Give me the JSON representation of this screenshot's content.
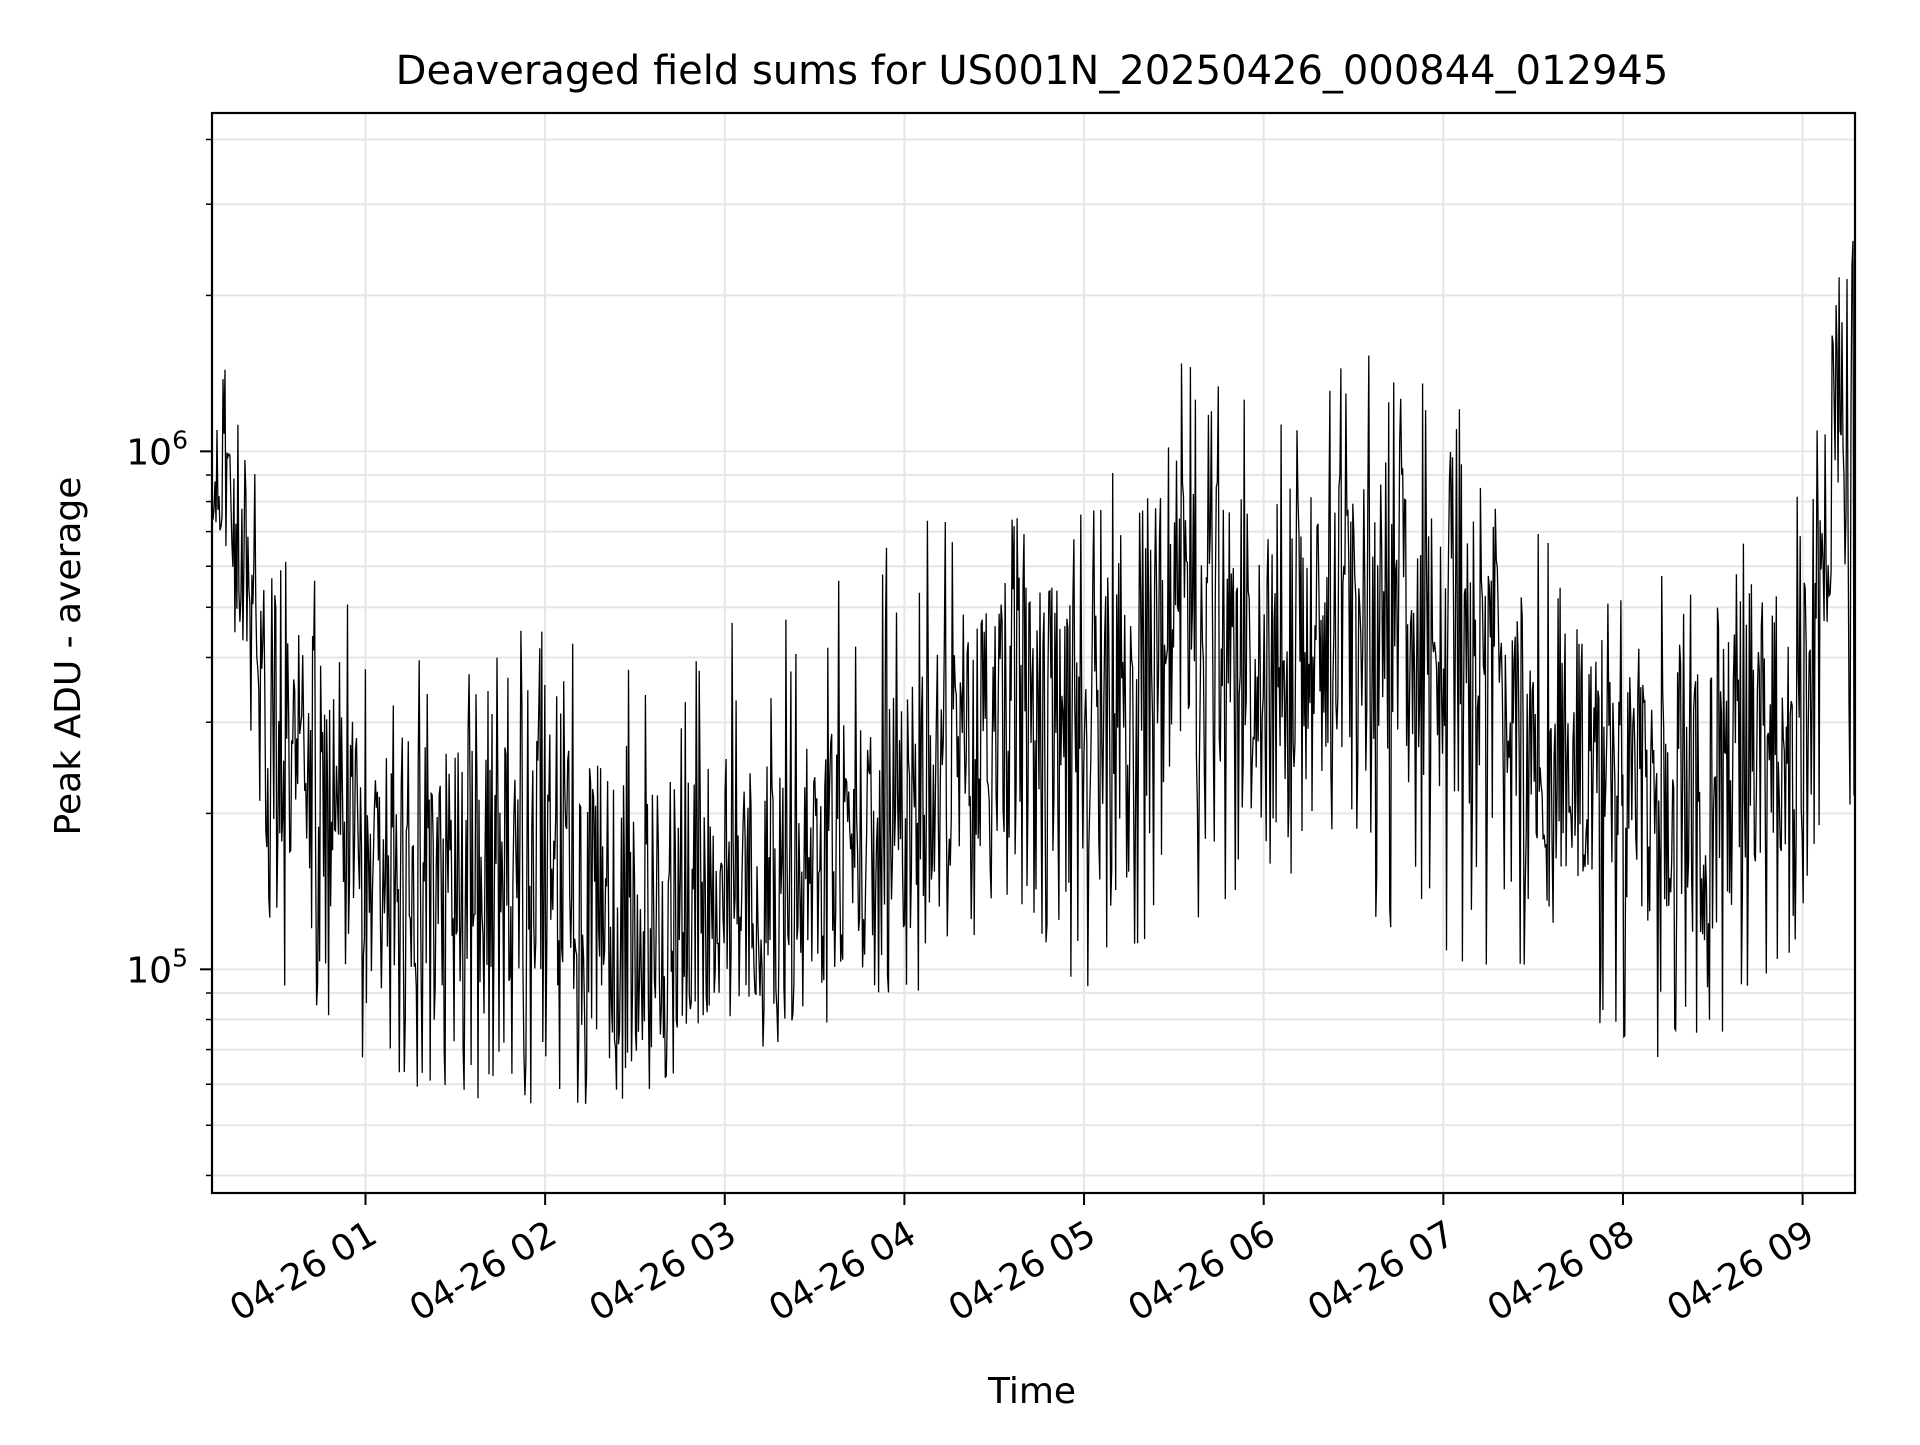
{
  "chart_data": {
    "type": "line",
    "title": "Deaveraged field sums for US001N_20250426_000844_012945",
    "xlabel": "Time",
    "ylabel": "Peak ADU - average",
    "x_axis": {
      "kind": "time",
      "start": "2025-04-26T00:08:44",
      "end": "2025-04-26T09:17:30",
      "tick_labels": [
        "04-26 01",
        "04-26 02",
        "04-26 03",
        "04-26 04",
        "04-26 05",
        "04-26 06",
        "04-26 07",
        "04-26 08",
        "04-26 09"
      ],
      "tick_rotation_deg": 30
    },
    "y_axis": {
      "scale": "log",
      "ylim": [
        37000,
        4500000
      ],
      "major_tick_labels": [
        {
          "base": "10",
          "exp": "5"
        },
        {
          "base": "10",
          "exp": "6"
        }
      ]
    },
    "grid": true,
    "legend": "none",
    "line_color": "#000000",
    "grid_color": "#e6e6e6",
    "series": [
      {
        "x": [
          "2025-04-26T00:08:44",
          "2025-04-26T00:30:00",
          "2025-04-26T01:00:00",
          "2025-04-26T01:30:00",
          "2025-04-26T02:00:00",
          "2025-04-26T02:30:00",
          "2025-04-26T03:00:00",
          "2025-04-26T03:30:00",
          "2025-04-26T04:00:00",
          "2025-04-26T04:30:00",
          "2025-04-26T05:00:00",
          "2025-04-26T05:30:00",
          "2025-04-26T06:00:00",
          "2025-04-26T06:30:00",
          "2025-04-26T07:00:00",
          "2025-04-26T07:30:00",
          "2025-04-26T08:00:00",
          "2025-04-26T08:30:00",
          "2025-04-26T09:00:00",
          "2025-04-26T09:17:30"
        ],
        "center": [
          950000,
          300000,
          170000,
          150000,
          170000,
          120000,
          150000,
          160000,
          200000,
          330000,
          290000,
          480000,
          430000,
          480000,
          460000,
          270000,
          230000,
          210000,
          330000,
          1300000
        ],
        "spread_low": [
          0.78,
          0.3,
          0.38,
          0.36,
          0.32,
          0.42,
          0.42,
          0.45,
          0.42,
          0.36,
          0.3,
          0.25,
          0.3,
          0.28,
          0.2,
          0.35,
          0.3,
          0.26,
          0.3,
          0.15
        ],
        "spread_high": [
          1.8,
          2.2,
          2.8,
          2.7,
          2.8,
          3.6,
          3.1,
          3.3,
          3.6,
          3.0,
          2.9,
          3.2,
          3.3,
          3.4,
          2.9,
          2.6,
          2.7,
          2.6,
          2.8,
          2.0
        ]
      }
    ]
  }
}
